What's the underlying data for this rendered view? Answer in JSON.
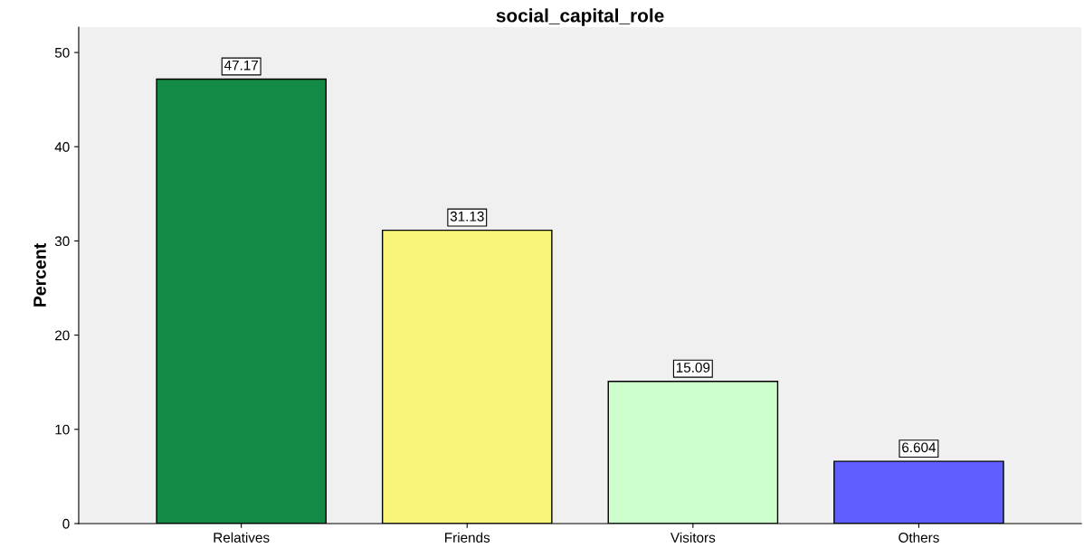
{
  "chart_data": {
    "type": "bar",
    "title": "social_capital_role",
    "ylabel": "Percent",
    "categories": [
      "Relatives",
      "Friends",
      "Visitors",
      "Others"
    ],
    "values": [
      47.17,
      31.13,
      15.09,
      6.604
    ],
    "colors": [
      "#138a45",
      "#f9f57a",
      "#ccffcc",
      "#5f5fff"
    ],
    "ylim": [
      0,
      52.7
    ],
    "yticks": [
      0,
      10,
      20,
      30,
      40,
      50
    ],
    "data_labels": true,
    "grid": false,
    "legend": false
  }
}
